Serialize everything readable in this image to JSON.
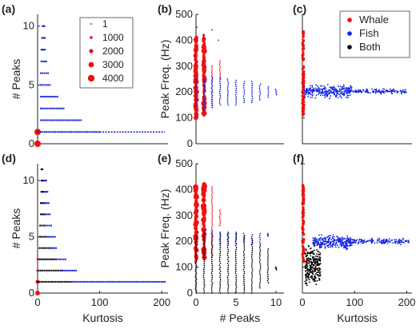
{
  "colors": {
    "whale": "#ee1111",
    "fish": "#1122dd",
    "both": "#000000",
    "axis": "#222222"
  },
  "chart_data": [
    {
      "panel": "a",
      "label": "(a)",
      "type": "scatter",
      "xlabel": "",
      "ylabel": "# Peaks",
      "xlim": [
        0,
        210
      ],
      "ylim": [
        0,
        11
      ],
      "xticks": [],
      "xtick_labels": [],
      "yticks": [
        0,
        5,
        10
      ],
      "ytick_labels": [
        "0",
        "5",
        "10"
      ],
      "legend": {
        "placement": "top-right",
        "entries": [
          "1",
          "1000",
          "2000",
          "3000",
          "4000"
        ]
      },
      "series": [
        {
          "color": "whale",
          "points": [
            [
              0,
              0,
              8
            ],
            [
              0,
              1,
              8
            ],
            [
              3,
              1,
              3
            ]
          ]
        },
        {
          "color": "fish",
          "ranges": [
            [
              0,
              100,
              1
            ],
            [
              5,
              70,
              2
            ],
            [
              5,
              42,
              3
            ],
            [
              5,
              32,
              4
            ],
            [
              5,
              20,
              5
            ],
            [
              5,
              17,
              6
            ],
            [
              6,
              14,
              7
            ],
            [
              6,
              12,
              8
            ],
            [
              7,
              12,
              9
            ],
            [
              8,
              11,
              10
            ]
          ],
          "extend": [
            [
              100,
              205,
              1
            ]
          ]
        }
      ]
    },
    {
      "panel": "b",
      "label": "(b)",
      "type": "scatter",
      "xlabel": "",
      "ylabel": "Peak Freq. (Hz)",
      "xlim": [
        0,
        11
      ],
      "ylim": [
        0,
        500
      ],
      "xticks": [],
      "xtick_labels": [],
      "yticks": [
        0,
        100,
        200,
        300,
        400,
        500
      ],
      "ytick_labels": [
        "0",
        "100",
        "200",
        "300",
        "400",
        "500"
      ],
      "series": [
        {
          "color": "whale",
          "columns": [
            [
              0,
              100,
              410
            ],
            [
              1,
              110,
              420
            ],
            [
              2,
              140,
              300
            ],
            [
              3,
              250,
              320
            ]
          ]
        },
        {
          "color": "fish",
          "columns": [
            [
              0,
              140,
              250
            ],
            [
              1,
              130,
              250
            ],
            [
              2,
              140,
              260
            ],
            [
              3,
              150,
              255
            ],
            [
              4,
              150,
              250
            ],
            [
              5,
              150,
              245
            ],
            [
              6,
              160,
              240
            ],
            [
              7,
              160,
              240
            ],
            [
              8,
              170,
              230
            ],
            [
              9,
              180,
              220
            ],
            [
              10,
              190,
              210
            ]
          ],
          "stray": [
            [
              0.1,
              450
            ],
            [
              1,
              420
            ],
            [
              2,
              440
            ],
            [
              2.8,
              400
            ]
          ]
        }
      ]
    },
    {
      "panel": "c",
      "label": "(c)",
      "type": "scatter",
      "xlabel": "",
      "ylabel": "",
      "xlim": [
        0,
        210
      ],
      "ylim": [
        0,
        500
      ],
      "xticks": [],
      "xtick_labels": [],
      "yticks": [
        0,
        100,
        200,
        300,
        400,
        500
      ],
      "ytick_labels": [],
      "legend": {
        "placement": "top-right",
        "entries": [
          "Whale",
          "Fish",
          "Both"
        ]
      },
      "series": [
        {
          "color": "whale",
          "band": [
            0,
            3,
            110,
            440
          ]
        },
        {
          "color": "fish",
          "cloud": [
            [
              3,
              95,
              170,
              235
            ],
            [
              95,
              200,
              190,
              215
            ]
          ]
        }
      ]
    },
    {
      "panel": "d",
      "label": "(d)",
      "type": "scatter",
      "xlabel": "Kurtosis",
      "ylabel": "# Peaks",
      "xlim": [
        0,
        210
      ],
      "ylim": [
        0,
        11.5
      ],
      "xticks": [
        0,
        100,
        200
      ],
      "xtick_labels": [
        "0",
        "100",
        "200"
      ],
      "yticks": [
        0,
        5,
        10
      ],
      "ytick_labels": [
        "0",
        "5",
        "10"
      ],
      "series": [
        {
          "color": "whale",
          "points": [
            [
              0,
              0,
              6
            ],
            [
              0,
              1,
              5
            ],
            [
              0,
              2,
              3
            ],
            [
              0,
              3,
              3
            ]
          ]
        },
        {
          "color": "both",
          "ranges": [
            [
              0,
              55,
              1
            ],
            [
              2,
              40,
              2
            ],
            [
              3,
              30,
              3
            ],
            [
              3,
              20,
              4
            ],
            [
              4,
              15,
              5
            ],
            [
              4,
              13,
              6
            ],
            [
              5,
              12,
              7
            ],
            [
              5,
              11,
              8
            ],
            [
              6,
              10,
              9
            ],
            [
              6,
              9,
              10
            ],
            [
              6,
              8,
              11
            ]
          ]
        },
        {
          "color": "fish",
          "ranges": [
            [
              55,
              205,
              1
            ],
            [
              40,
              62,
              2
            ],
            [
              30,
              45,
              3
            ],
            [
              20,
              30,
              4
            ],
            [
              15,
              28,
              5
            ],
            [
              13,
              22,
              6
            ],
            [
              12,
              20,
              7
            ],
            [
              11,
              18,
              8
            ],
            [
              10,
              16,
              9
            ],
            [
              9,
              14,
              10
            ]
          ]
        }
      ]
    },
    {
      "panel": "e",
      "label": "(e)",
      "type": "scatter",
      "xlabel": "# Peaks",
      "ylabel": "Peak Freq. (Hz)",
      "xlim": [
        0,
        11
      ],
      "ylim": [
        0,
        500
      ],
      "xticks": [
        0,
        5,
        10
      ],
      "xtick_labels": [
        "0",
        "5",
        "10"
      ],
      "yticks": [
        0,
        100,
        200,
        300,
        400,
        500
      ],
      "ytick_labels": [
        "0",
        "100",
        "200",
        "300",
        "400",
        "500"
      ],
      "series": [
        {
          "color": "whale",
          "columns": [
            [
              0,
              120,
              410
            ],
            [
              1,
              130,
              420
            ],
            [
              2,
              140,
              410
            ],
            [
              3,
              260,
              320
            ]
          ]
        },
        {
          "color": "both",
          "columns": [
            [
              0,
              0,
              220
            ],
            [
              1,
              0,
              230
            ],
            [
              2,
              0,
              230
            ],
            [
              3,
              0,
              230
            ],
            [
              4,
              0,
              230
            ],
            [
              5,
              0,
              230
            ],
            [
              6,
              0,
              220
            ],
            [
              7,
              0,
              210
            ],
            [
              8,
              20,
              190
            ],
            [
              9,
              40,
              170
            ],
            [
              10,
              90,
              100
            ]
          ]
        },
        {
          "color": "fish",
          "columns": [
            [
              1,
              190,
              240
            ],
            [
              2,
              200,
              240
            ],
            [
              3,
              190,
              235
            ],
            [
              4,
              190,
              235
            ],
            [
              5,
              190,
              235
            ],
            [
              6,
              200,
              230
            ],
            [
              7,
              190,
              225
            ],
            [
              8,
              190,
              230
            ],
            [
              9,
              220,
              230
            ]
          ]
        }
      ]
    },
    {
      "panel": "f",
      "label": "(f)",
      "type": "scatter",
      "xlabel": "Kurtosis",
      "ylabel": "",
      "xlim": [
        0,
        210
      ],
      "ylim": [
        0,
        500
      ],
      "xticks": [
        0,
        100,
        200
      ],
      "xtick_labels": [
        "0",
        "100",
        "200"
      ],
      "yticks": [
        0,
        100,
        200,
        300,
        400,
        500
      ],
      "ytick_labels": [],
      "series": [
        {
          "color": "whale",
          "band": [
            0,
            3,
            120,
            420
          ]
        },
        {
          "color": "both",
          "cloud": [
            [
              5,
              35,
              0,
              210
            ]
          ]
        },
        {
          "color": "fish",
          "cloud": [
            [
              20,
              95,
              160,
              235
            ],
            [
              95,
              205,
              185,
              215
            ]
          ]
        }
      ]
    }
  ],
  "legend_size": {
    "entries": [
      {
        "label": "1",
        "radius_px": 1
      },
      {
        "label": "1000",
        "radius_px": 1.8
      },
      {
        "label": "2000",
        "radius_px": 2.6
      },
      {
        "label": "3000",
        "radius_px": 3.4
      },
      {
        "label": "4000",
        "radius_px": 4.2
      }
    ]
  },
  "legend_type": {
    "entries": [
      {
        "label": "Whale",
        "color": "whale"
      },
      {
        "label": "Fish",
        "color": "fish"
      },
      {
        "label": "Both",
        "color": "both"
      }
    ]
  }
}
